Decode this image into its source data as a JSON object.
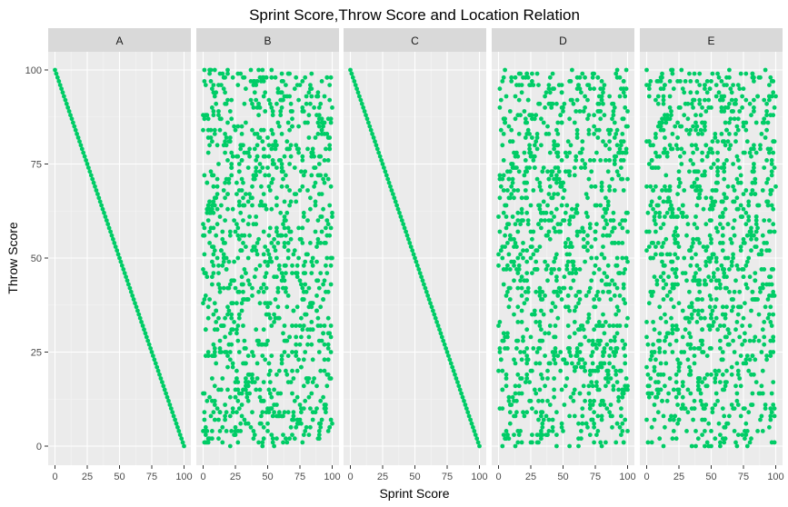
{
  "chart_data": {
    "type": "scatter",
    "title": "Sprint Score,Throw Score and Location Relation",
    "xlabel": "Sprint Score",
    "ylabel": "Throw Score",
    "xlim": [
      0,
      100
    ],
    "ylim": [
      0,
      100
    ],
    "x_ticks": [
      0,
      25,
      50,
      75,
      100
    ],
    "y_ticks": [
      0,
      25,
      50,
      75,
      100
    ],
    "x_tick_labels": [
      "0",
      "25",
      "50",
      "75",
      "100"
    ],
    "y_tick_labels": [
      "0",
      "25",
      "50",
      "75",
      "100"
    ],
    "grid": true,
    "legend": "none",
    "point_color": "#00CC66",
    "panel_background": "#EBEBEB",
    "strip_background": "#D9D9D9",
    "panels": [
      {
        "label": "A",
        "pattern": "negative-diagonal",
        "note": "points lie on y = 100 - x from (0,100) to (100,0)"
      },
      {
        "label": "B",
        "pattern": "uniform-random",
        "note": "points spread uniformly over x 0-100, y 0-100"
      },
      {
        "label": "C",
        "pattern": "negative-diagonal",
        "note": "points lie on y = 100 - x from (0,100) to (100,0)"
      },
      {
        "label": "D",
        "pattern": "uniform-random",
        "note": "points spread uniformly over x 0-100, y 0-100"
      },
      {
        "label": "E",
        "pattern": "uniform-random",
        "note": "points spread uniformly over x 0-100, y 0-100"
      }
    ]
  }
}
